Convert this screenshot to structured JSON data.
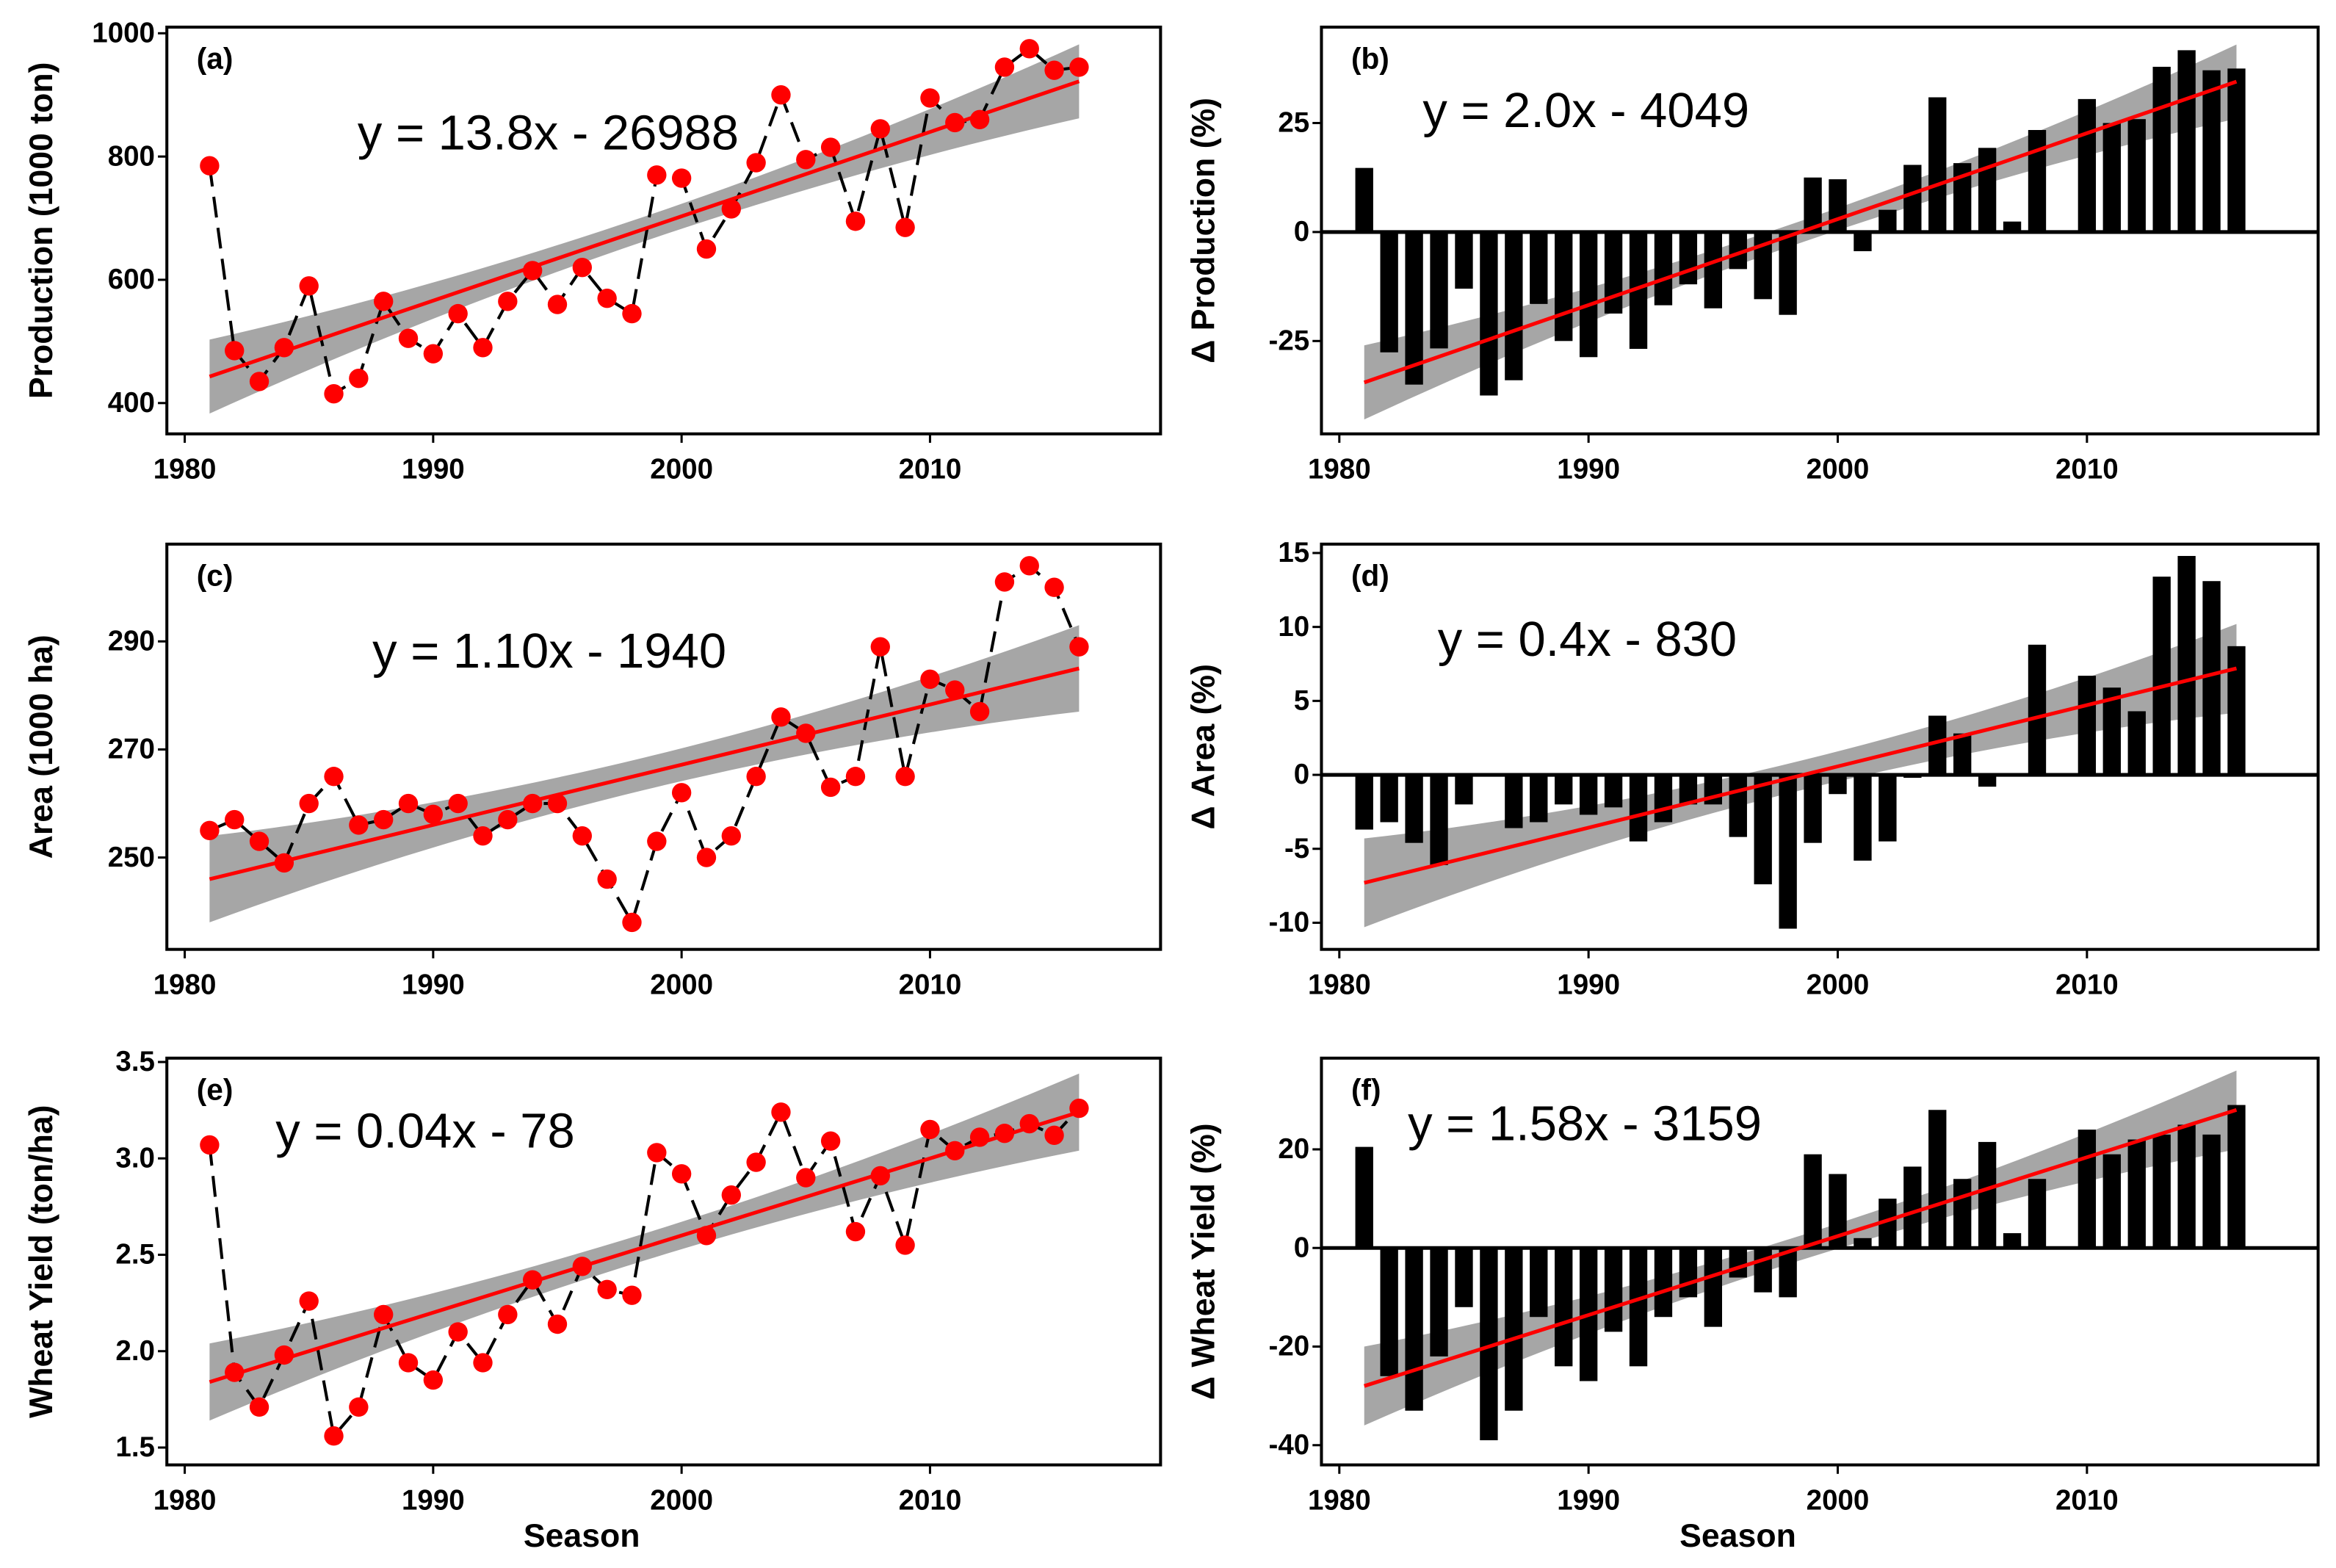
{
  "chart_data": [
    {
      "panel": "(a)",
      "type": "line",
      "equation": "y = 13.8x - 26988",
      "ylabel": "Production (1000 ton)",
      "xlabel": "",
      "xticks": [
        "1980",
        "1990",
        "2000",
        "2010"
      ],
      "yticks": [
        "400",
        "600",
        "800",
        "1000"
      ],
      "ylim": [
        350,
        1010
      ],
      "xlim": [
        1979,
        2018
      ],
      "x": [
        1981,
        1982,
        1983,
        1984,
        1985,
        1986,
        1987,
        1988,
        1989,
        1990,
        1991,
        1992,
        1993,
        1994,
        1995,
        1996,
        1997,
        1998,
        1999,
        2000,
        2001,
        2002,
        2003,
        2004,
        2005,
        2006,
        2007,
        2008,
        2009,
        2010,
        2011,
        2012,
        2013,
        2014,
        2015,
        2016
      ],
      "values": [
        785,
        485,
        435,
        490,
        590,
        415,
        440,
        565,
        505,
        480,
        545,
        490,
        565,
        615,
        560,
        620,
        570,
        545,
        770,
        765,
        650,
        715,
        790,
        900,
        795,
        815,
        695,
        845,
        685,
        895,
        855,
        860,
        945,
        975,
        940,
        945
      ],
      "trend": [
        443,
        922
      ],
      "ci_halfwidth_ends": 60,
      "ci_halfwidth_mid": 20
    },
    {
      "panel": "(b)",
      "type": "bar",
      "equation": "y = 2.0x - 4049",
      "ylabel": "Δ Production (%)",
      "xlabel": "",
      "xticks": [
        "1980",
        "1990",
        "2000",
        "2010"
      ],
      "yticks": [
        "-25",
        "0",
        "25"
      ],
      "ylim": [
        -46.3,
        47
      ],
      "xlim": [
        1979,
        2018
      ],
      "x": [
        1981,
        1982,
        1983,
        1984,
        1985,
        1986,
        1987,
        1988,
        1989,
        1990,
        1991,
        1992,
        1993,
        1994,
        1995,
        1996,
        1997,
        1998,
        1999,
        2000,
        2001,
        2002,
        2003,
        2004,
        2005,
        2006,
        2007,
        2008,
        2009,
        2010,
        2011,
        2012,
        2013,
        2014,
        2015,
        2016
      ],
      "values": [
        14.7,
        -27.6,
        -35,
        -26.7,
        -13,
        -37.5,
        -34,
        -16.5,
        -25,
        -28.7,
        -18.7,
        -26.8,
        -16.8,
        -12,
        -17.5,
        -8.5,
        -15.4,
        -19,
        12.5,
        12.1,
        -4.4,
        5.1,
        15.4,
        30.9,
        15.8,
        19.3,
        2.4,
        23.4,
        0,
        30.5,
        25,
        25.9,
        37.9,
        41.7,
        37.1,
        37.5
      ],
      "trend": [
        -34.5,
        34.5
      ],
      "ci_halfwidth_ends": 8.5,
      "ci_halfwidth_mid": 2.5
    },
    {
      "panel": "(c)",
      "type": "line",
      "equation": "y = 1.10x - 1940",
      "ylabel": "Area (1000 ha)",
      "xlabel": "",
      "xticks": [
        "1980",
        "1990",
        "2000",
        "2010"
      ],
      "yticks": [
        "250",
        "270",
        "290"
      ],
      "ylim": [
        233,
        308
      ],
      "xlim": [
        1979,
        2018
      ],
      "x": [
        1981,
        1982,
        1983,
        1984,
        1985,
        1986,
        1987,
        1988,
        1989,
        1990,
        1991,
        1992,
        1993,
        1994,
        1995,
        1996,
        1997,
        1998,
        1999,
        2000,
        2001,
        2002,
        2003,
        2004,
        2005,
        2006,
        2007,
        2008,
        2009,
        2010,
        2011,
        2012,
        2013,
        2014,
        2015,
        2016
      ],
      "values": [
        255,
        257,
        253,
        249,
        260,
        265,
        256,
        257,
        260,
        258,
        260,
        254,
        257,
        260,
        260,
        254,
        246,
        238,
        253,
        262,
        250,
        254,
        265,
        276,
        273,
        263,
        265,
        289,
        265,
        283,
        281,
        277,
        301,
        304,
        300,
        289
      ],
      "trend": [
        246,
        285
      ],
      "ci_halfwidth_ends": 8,
      "ci_halfwidth_mid": 3
    },
    {
      "panel": "(d)",
      "type": "bar",
      "equation": "y = 0.4x - 830",
      "ylabel": "Δ Area (%)",
      "xlabel": "",
      "xticks": [
        "1980",
        "1990",
        "2000",
        "2010"
      ],
      "yticks": [
        "-10",
        "-5",
        "0",
        "5",
        "10",
        "15"
      ],
      "ylim": [
        -11.8,
        15.6
      ],
      "xlim": [
        1979,
        2018
      ],
      "x": [
        1981,
        1982,
        1983,
        1984,
        1985,
        1986,
        1987,
        1988,
        1989,
        1990,
        1991,
        1992,
        1993,
        1994,
        1995,
        1996,
        1997,
        1998,
        1999,
        2000,
        2001,
        2002,
        2003,
        2004,
        2005,
        2006,
        2007,
        2008,
        2009,
        2010,
        2011,
        2012,
        2013,
        2014,
        2015,
        2016
      ],
      "values": [
        -3.7,
        -3.2,
        -4.6,
        -6.1,
        -2,
        0,
        -3.6,
        -3.2,
        -2,
        -2.7,
        -2.2,
        -4.5,
        -3.2,
        -2,
        -2,
        -4.2,
        -7.4,
        -10.4,
        -4.6,
        -1.3,
        -5.8,
        -4.5,
        -0.2,
        4,
        2.8,
        -0.8,
        0,
        8.8,
        0,
        6.7,
        5.9,
        4.3,
        13.4,
        14.8,
        13.1,
        8.7
      ],
      "trend": [
        -7.3,
        7.2
      ],
      "ci_halfwidth_ends": 3,
      "ci_halfwidth_mid": 1
    },
    {
      "panel": "(e)",
      "type": "line",
      "equation": "y = 0.04x - 78",
      "ylabel": "Wheat Yield (ton/ha)",
      "xlabel": "Season",
      "xticks": [
        "1980",
        "1990",
        "2000",
        "2010"
      ],
      "yticks": [
        "1.5",
        "2.0",
        "2.5",
        "3.0",
        "3.5"
      ],
      "ylim": [
        1.41,
        3.52
      ],
      "xlim": [
        1979,
        2018
      ],
      "x": [
        1981,
        1982,
        1983,
        1984,
        1985,
        1986,
        1987,
        1988,
        1989,
        1990,
        1991,
        1992,
        1993,
        1994,
        1995,
        1996,
        1997,
        1998,
        1999,
        2000,
        2001,
        2002,
        2003,
        2004,
        2005,
        2006,
        2007,
        2008,
        2009,
        2010,
        2011,
        2012,
        2013,
        2014,
        2015,
        2016
      ],
      "values": [
        3.07,
        1.89,
        1.71,
        1.98,
        2.26,
        1.56,
        1.71,
        2.19,
        1.94,
        1.85,
        2.1,
        1.94,
        2.19,
        2.37,
        2.14,
        2.44,
        2.32,
        2.29,
        3.03,
        2.92,
        2.6,
        2.81,
        2.98,
        3.24,
        2.9,
        3.09,
        2.62,
        2.91,
        2.55,
        3.15,
        3.04,
        3.11,
        3.13,
        3.18,
        3.12,
        3.26
      ],
      "trend": [
        1.84,
        3.24
      ],
      "ci_halfwidth_ends": 0.2,
      "ci_halfwidth_mid": 0.07
    },
    {
      "panel": "(f)",
      "type": "bar",
      "equation": "y = 1.58x - 3159",
      "ylabel": "Δ Wheat Yield (%)",
      "xlabel": "Season",
      "xticks": [
        "1980",
        "1990",
        "2000",
        "2010"
      ],
      "yticks": [
        "-40",
        "-20",
        "0",
        "20"
      ],
      "ylim": [
        -44,
        38.5
      ],
      "xlim": [
        1979,
        2018
      ],
      "x": [
        1981,
        1982,
        1983,
        1984,
        1985,
        1986,
        1987,
        1988,
        1989,
        1990,
        1991,
        1992,
        1993,
        1994,
        1995,
        1996,
        1997,
        1998,
        1999,
        2000,
        2001,
        2002,
        2003,
        2004,
        2005,
        2006,
        2007,
        2008,
        2009,
        2010,
        2011,
        2012,
        2013,
        2014,
        2015,
        2016
      ],
      "values": [
        20.5,
        -26,
        -33,
        -22,
        -12,
        -39,
        -33,
        -14,
        -24,
        -27,
        -17,
        -24,
        -14,
        -10,
        -16,
        -6,
        -9,
        -10,
        19,
        15,
        2,
        10,
        16.5,
        28,
        14,
        21.5,
        3,
        14,
        0,
        24,
        19,
        22,
        23,
        25,
        23,
        29
      ],
      "trend": [
        -28,
        28
      ],
      "ci_halfwidth_ends": 8,
      "ci_halfwidth_mid": 2.5
    }
  ],
  "colors": {
    "points": "#ff0000",
    "trend": "#ff0000",
    "band": "#a6a6a6",
    "bars": "#000000",
    "connector": "#000000"
  }
}
